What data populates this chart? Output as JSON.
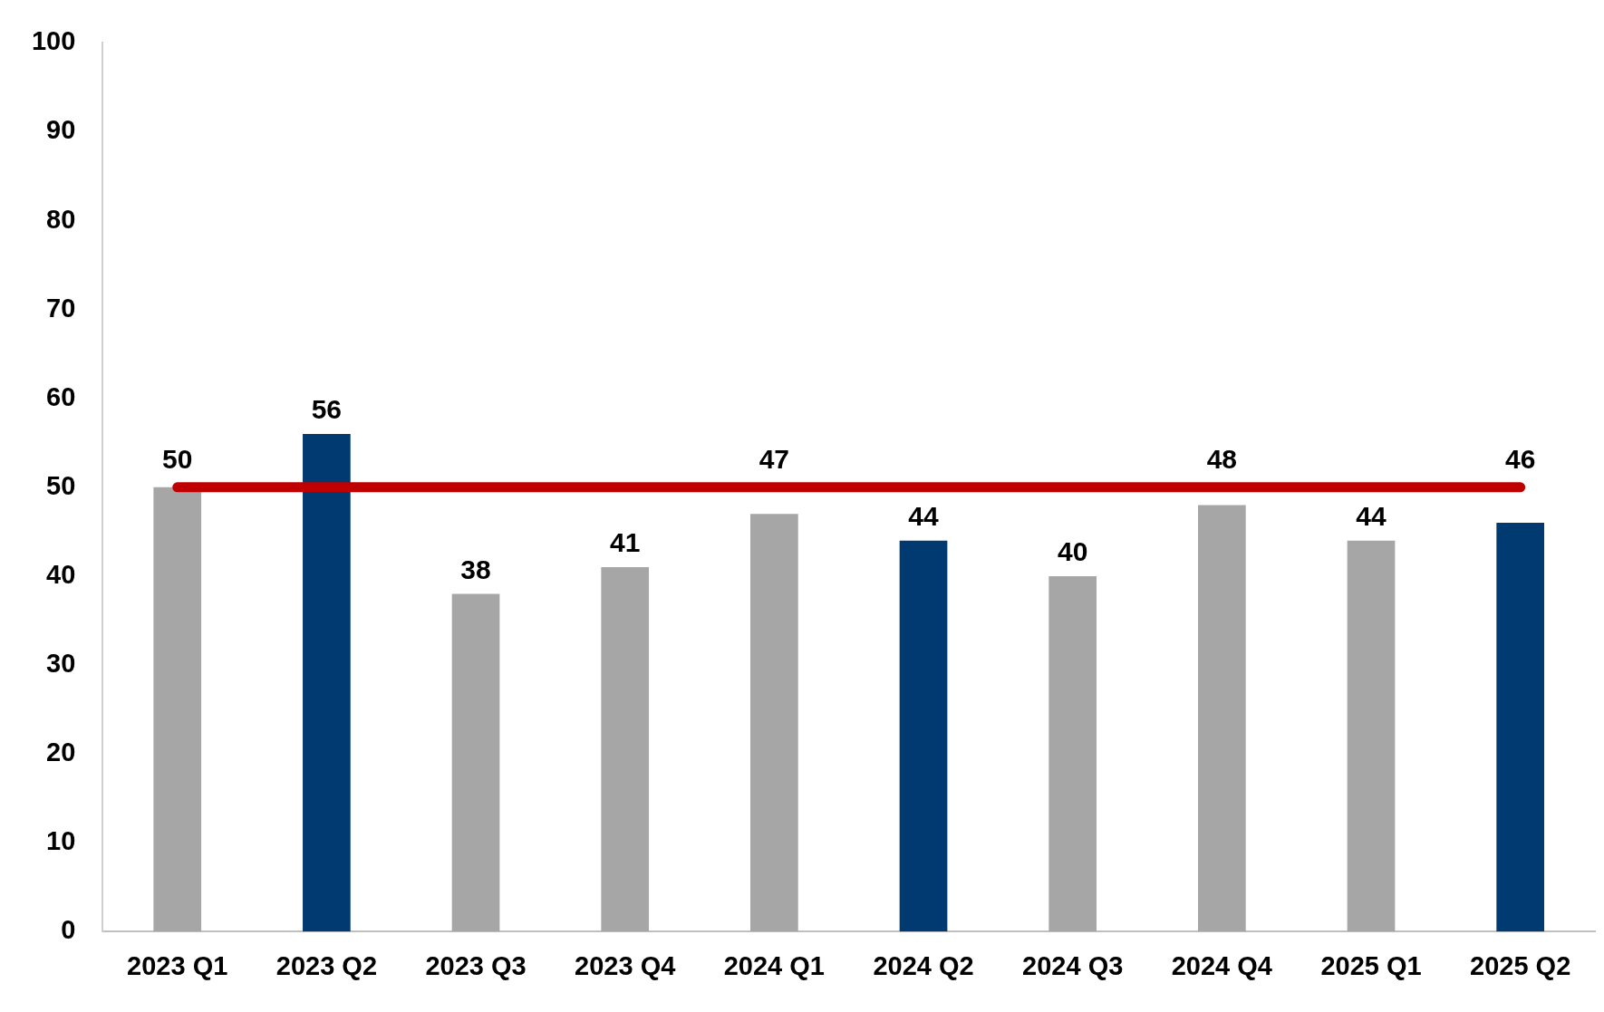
{
  "chart_data": {
    "type": "bar",
    "categories": [
      "2023 Q1",
      "2023 Q2",
      "2023 Q3",
      "2023 Q4",
      "2024 Q1",
      "2024 Q2",
      "2024 Q3",
      "2024 Q4",
      "2025 Q1",
      "2025 Q2"
    ],
    "values": [
      50,
      56,
      38,
      41,
      47,
      44,
      40,
      48,
      44,
      46
    ],
    "colors": [
      "#a6a6a6",
      "#003a70",
      "#a6a6a6",
      "#a6a6a6",
      "#a6a6a6",
      "#003a70",
      "#a6a6a6",
      "#a6a6a6",
      "#a6a6a6",
      "#003a70"
    ],
    "ylim": [
      0,
      100
    ],
    "yticks": [
      0,
      10,
      20,
      30,
      40,
      50,
      60,
      70,
      80,
      90,
      100
    ],
    "ref_lines": [
      {
        "axis": "y",
        "value": 50,
        "label": null,
        "color": "#c00000"
      }
    ],
    "data_labels": true,
    "grid": false,
    "legend": false
  }
}
